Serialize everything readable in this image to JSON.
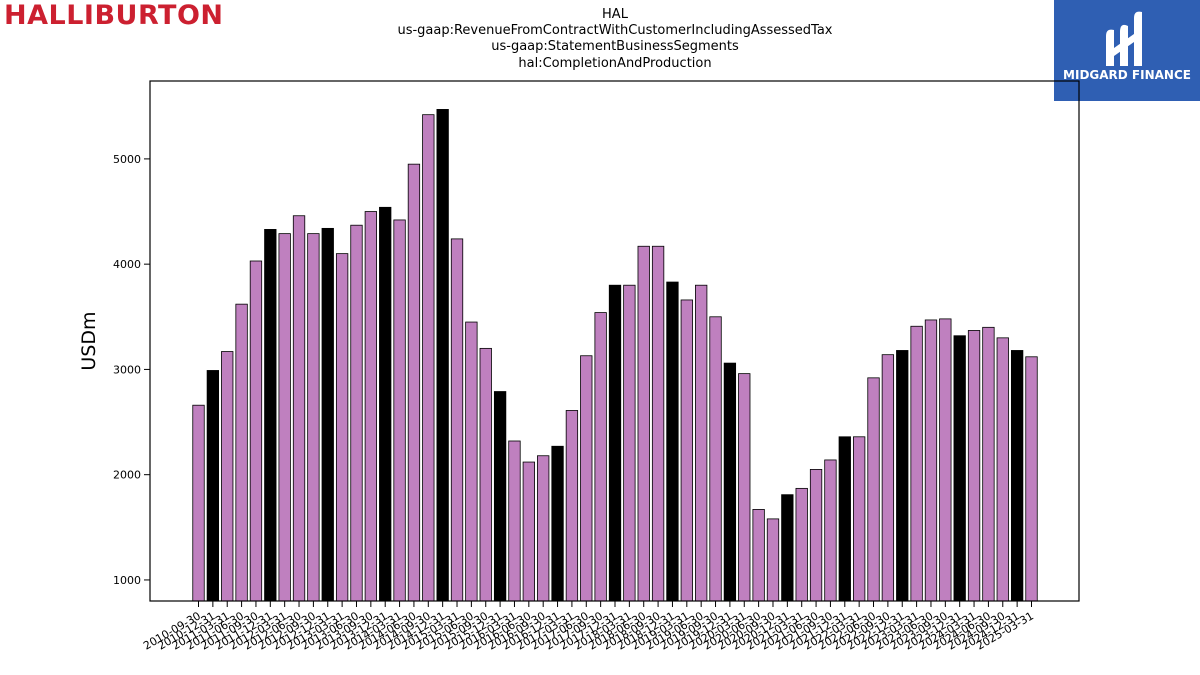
{
  "header": {
    "logo_left_text": "HALLIBURTON",
    "logo_right_text": "MIDGARD FINANCE",
    "logo_right_icon": "midgard-mark-icon"
  },
  "colors": {
    "bar_purple": "#bf80bf",
    "bar_black": "#000000",
    "halliburton_red": "#cc2030",
    "midgard_blue": "#2f5fb3"
  },
  "chart_data": {
    "type": "bar",
    "title_lines": [
      "HAL",
      "us-gaap:RevenueFromContractWithCustomerIncludingAssessedTax",
      "us-gaap:StatementBusinessSegments",
      "hal:CompletionAndProduction"
    ],
    "ylabel": "USDm",
    "xlabel": "",
    "ylim": [
      800,
      5740
    ],
    "yticks": [
      1000,
      2000,
      3000,
      4000,
      5000
    ],
    "grid": false,
    "legend": "none",
    "categories": [
      "2010-09-30",
      "2010-12-31",
      "2011-03-31",
      "2011-06-30",
      "2011-09-30",
      "2011-12-31",
      "2012-03-31",
      "2012-06-30",
      "2012-09-30",
      "2012-12-31",
      "2013-03-31",
      "2013-06-30",
      "2013-09-30",
      "2013-12-31",
      "2014-03-31",
      "2014-06-30",
      "2014-09-30",
      "2014-12-31",
      "2015-03-31",
      "2015-06-30",
      "2015-09-30",
      "2015-12-31",
      "2016-03-31",
      "2016-06-30",
      "2016-09-30",
      "2016-12-31",
      "2017-03-31",
      "2017-06-30",
      "2017-09-30",
      "2017-12-31",
      "2018-03-31",
      "2018-06-30",
      "2018-09-30",
      "2018-12-31",
      "2019-03-31",
      "2019-06-30",
      "2019-09-30",
      "2019-12-31",
      "2020-03-31",
      "2020-06-30",
      "2020-09-30",
      "2020-12-31",
      "2021-03-31",
      "2021-06-30",
      "2021-09-30",
      "2021-12-31",
      "2022-03-31",
      "2022-06-30",
      "2022-09-30",
      "2022-12-31",
      "2023-03-31",
      "2023-06-30",
      "2023-09-30",
      "2023-12-31",
      "2024-03-31",
      "2024-06-30",
      "2024-09-30",
      "2024-12-31",
      "2025-03-31"
    ],
    "values": [
      2660,
      2990,
      3170,
      3620,
      4030,
      4330,
      4290,
      4460,
      4290,
      4340,
      4100,
      4370,
      4500,
      4540,
      4420,
      4950,
      5420,
      5470,
      4240,
      3450,
      3200,
      2790,
      2320,
      2120,
      2180,
      2270,
      2610,
      3130,
      3540,
      3800,
      3800,
      4170,
      4170,
      3830,
      3660,
      3800,
      3500,
      3060,
      2960,
      1670,
      1580,
      1810,
      1870,
      2050,
      2140,
      2360,
      2360,
      2920,
      3140,
      3180,
      3410,
      3470,
      3480,
      3320,
      3370,
      3400,
      3300,
      3180,
      3120
    ],
    "highlight_black": [
      false,
      true,
      false,
      false,
      false,
      true,
      false,
      false,
      false,
      true,
      false,
      false,
      false,
      true,
      false,
      false,
      false,
      true,
      false,
      false,
      false,
      true,
      false,
      false,
      false,
      true,
      false,
      false,
      false,
      true,
      false,
      false,
      false,
      true,
      false,
      false,
      false,
      true,
      false,
      false,
      false,
      true,
      false,
      false,
      false,
      true,
      false,
      false,
      false,
      true,
      false,
      false,
      false,
      true,
      false,
      false,
      false,
      true,
      false
    ]
  }
}
